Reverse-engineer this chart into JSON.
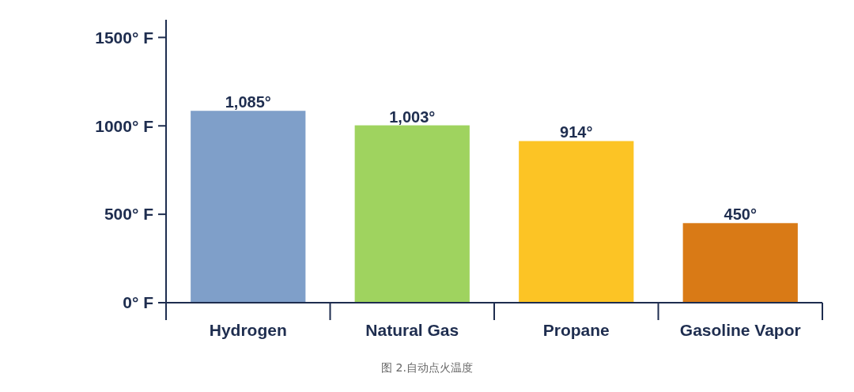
{
  "chart_data": {
    "type": "bar",
    "categories": [
      "Hydrogen",
      "Natural Gas",
      "Propane",
      "Gasoline Vapor"
    ],
    "values": [
      1085,
      1003,
      914,
      450
    ],
    "colors": [
      "#7f9fc9",
      "#9fd35f",
      "#fcc425",
      "#d97a16"
    ],
    "value_labels": [
      "1,085°",
      "1,003°",
      "914°",
      "450°"
    ],
    "ylim": [
      0,
      1600
    ],
    "yticks": [
      {
        "value": 0,
        "label": "0° F"
      },
      {
        "value": 500,
        "label": "500° F"
      },
      {
        "value": 1000,
        "label": "1000° F"
      },
      {
        "value": 1500,
        "label": "1500° F"
      }
    ],
    "grid": false,
    "annotations": [
      "图 2.自动点火温度"
    ]
  }
}
